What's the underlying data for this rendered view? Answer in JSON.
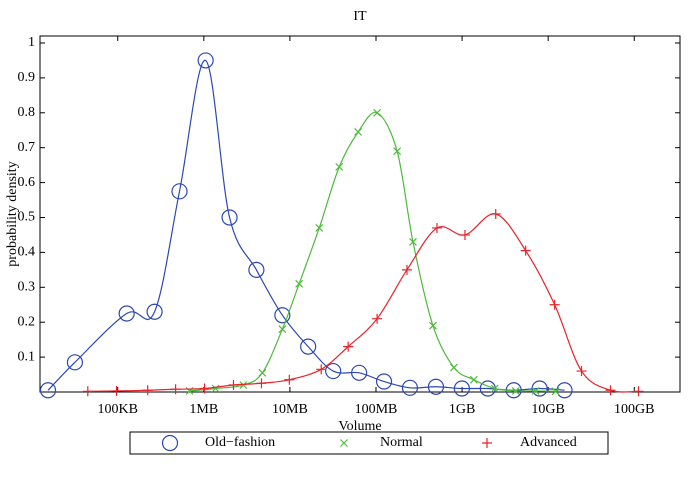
{
  "chart_data": {
    "type": "line",
    "title": "IT",
    "x_label": "Volume",
    "y_label": "probability density",
    "x_scale": "log",
    "xlim": [
      12500,
      340000000000
    ],
    "xticks": [
      {
        "value": 100000,
        "label": "100KB"
      },
      {
        "value": 1000000,
        "label": "1MB"
      },
      {
        "value": 10000000,
        "label": "10MB"
      },
      {
        "value": 100000000,
        "label": "100MB"
      },
      {
        "value": 1000000000,
        "label": "1GB"
      },
      {
        "value": 10000000000,
        "label": "10GB"
      },
      {
        "value": 100000000000,
        "label": "100GB"
      }
    ],
    "ylim": [
      0,
      1.02
    ],
    "yticks": [
      0.1,
      0.2,
      0.3,
      0.4,
      0.5,
      0.6,
      0.7,
      0.8,
      0.9,
      1
    ],
    "grid": false,
    "legend": "bottom",
    "series": [
      {
        "name": "Old−fashion",
        "color": "#2d47b0",
        "marker": "o",
        "x": [
          15500,
          31800,
          127000,
          268000,
          522000,
          1050000,
          1990000,
          4080000,
          8170000,
          16300000,
          31800000,
          63700000,
          124000000,
          248000000,
          497000000,
          995000000,
          1990000000,
          3980000000,
          7960000000,
          15500000000
        ],
        "values": [
          0.005,
          0.085,
          0.225,
          0.23,
          0.575,
          0.95,
          0.5,
          0.35,
          0.22,
          0.13,
          0.06,
          0.055,
          0.03,
          0.012,
          0.015,
          0.01,
          0.01,
          0.005,
          0.01,
          0.005
        ]
      },
      {
        "name": "Normal",
        "color": "#4dba3c",
        "marker": "x",
        "x": [
          683000,
          1370000,
          2880000,
          4790000,
          8170000,
          12800000,
          21900000,
          37400000,
          62000000,
          103000000,
          176000000,
          269000000,
          459000000,
          804000000,
          1370000000,
          2400000000,
          4200000000,
          7160000000,
          12200000000
        ],
        "values": [
          0.003,
          0.01,
          0.02,
          0.055,
          0.18,
          0.31,
          0.47,
          0.645,
          0.745,
          0.8,
          0.69,
          0.43,
          0.19,
          0.07,
          0.035,
          0.01,
          0.003,
          0.003,
          0.002
        ]
      },
      {
        "name": "Advanced",
        "color": "#e8232b",
        "marker": "+",
        "x": [
          44900,
          97000,
          223000,
          470000,
          1020000,
          2210000,
          4670000,
          9840000,
          23100000,
          47500000,
          103000000,
          229000000,
          511000000,
          1080000000,
          2460000000,
          5480000000,
          11900000000,
          24400000000,
          53000000000,
          112000000000
        ],
        "values": [
          0.002,
          0.003,
          0.005,
          0.008,
          0.01,
          0.02,
          0.025,
          0.035,
          0.065,
          0.13,
          0.21,
          0.35,
          0.47,
          0.45,
          0.51,
          0.405,
          0.25,
          0.06,
          0.005,
          0.002
        ]
      }
    ]
  }
}
